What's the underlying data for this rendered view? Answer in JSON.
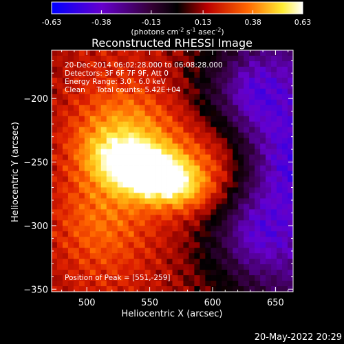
{
  "colorbar": {
    "ticks": [
      "-0.63",
      "-0.38",
      "-0.13",
      "0.13",
      "0.38",
      "0.63"
    ],
    "tick_values": [
      -0.63,
      -0.38,
      -0.13,
      0.13,
      0.38,
      0.63
    ],
    "range": [
      -0.63,
      0.63
    ],
    "units_text": "(photons cm",
    "units_sup1": "-2",
    "units_text2": " s",
    "units_sup2": "-1",
    "units_text3": " asec",
    "units_sup3": "-2",
    "units_text4": ")"
  },
  "chart_data": {
    "type": "heatmap",
    "title": "Reconstructed RHESSI Image",
    "xlabel": "Heliocentric X (arcsec)",
    "ylabel": "Heliocentric Y (arcsec)",
    "xlim": [
      472,
      664
    ],
    "ylim": [
      -352,
      -162
    ],
    "xticks": [
      500,
      550,
      600,
      650
    ],
    "yticks": [
      -200,
      -250,
      -300,
      -350
    ],
    "xtick_labels": [
      "500",
      "550",
      "600",
      "650"
    ],
    "ytick_labels": [
      "−200",
      "−250",
      "−300",
      "−350"
    ],
    "annotations": [
      "20-Dec-2014 06:02:28.000 to 06:08:28.000",
      "Detectors: 3F 6F 7F 9F, Att 0",
      "Energy Range: 3.0 - 6.0 keV",
      "Clean     Total counts: 5.42E+04"
    ],
    "peak_label": "Position of Peak = [551,-259]",
    "peak": [
      551,
      -259
    ],
    "peak_value": 0.63,
    "sources": [
      {
        "x": 551,
        "y": -259,
        "amplitude": 0.63
      },
      {
        "x": 530,
        "y": -235,
        "amplitude": 0.3
      },
      {
        "x": 595,
        "y": -255,
        "amplitude": 0.2
      },
      {
        "x": 510,
        "y": -300,
        "amplitude": 0.15
      }
    ],
    "negative_lobes": [
      {
        "x": 628,
        "y": -195,
        "amplitude": -0.15
      },
      {
        "x": 630,
        "y": -305,
        "amplitude": -0.14
      },
      {
        "x": 660,
        "y": -250,
        "amplitude": -0.1
      }
    ],
    "colormap": [
      "#0000ff",
      "#6600cc",
      "#330022",
      "#000000",
      "#cc0000",
      "#ff6600",
      "#ffee44",
      "#ffffff"
    ]
  },
  "footer": {
    "timestamp": "20-May-2022 20:29"
  }
}
